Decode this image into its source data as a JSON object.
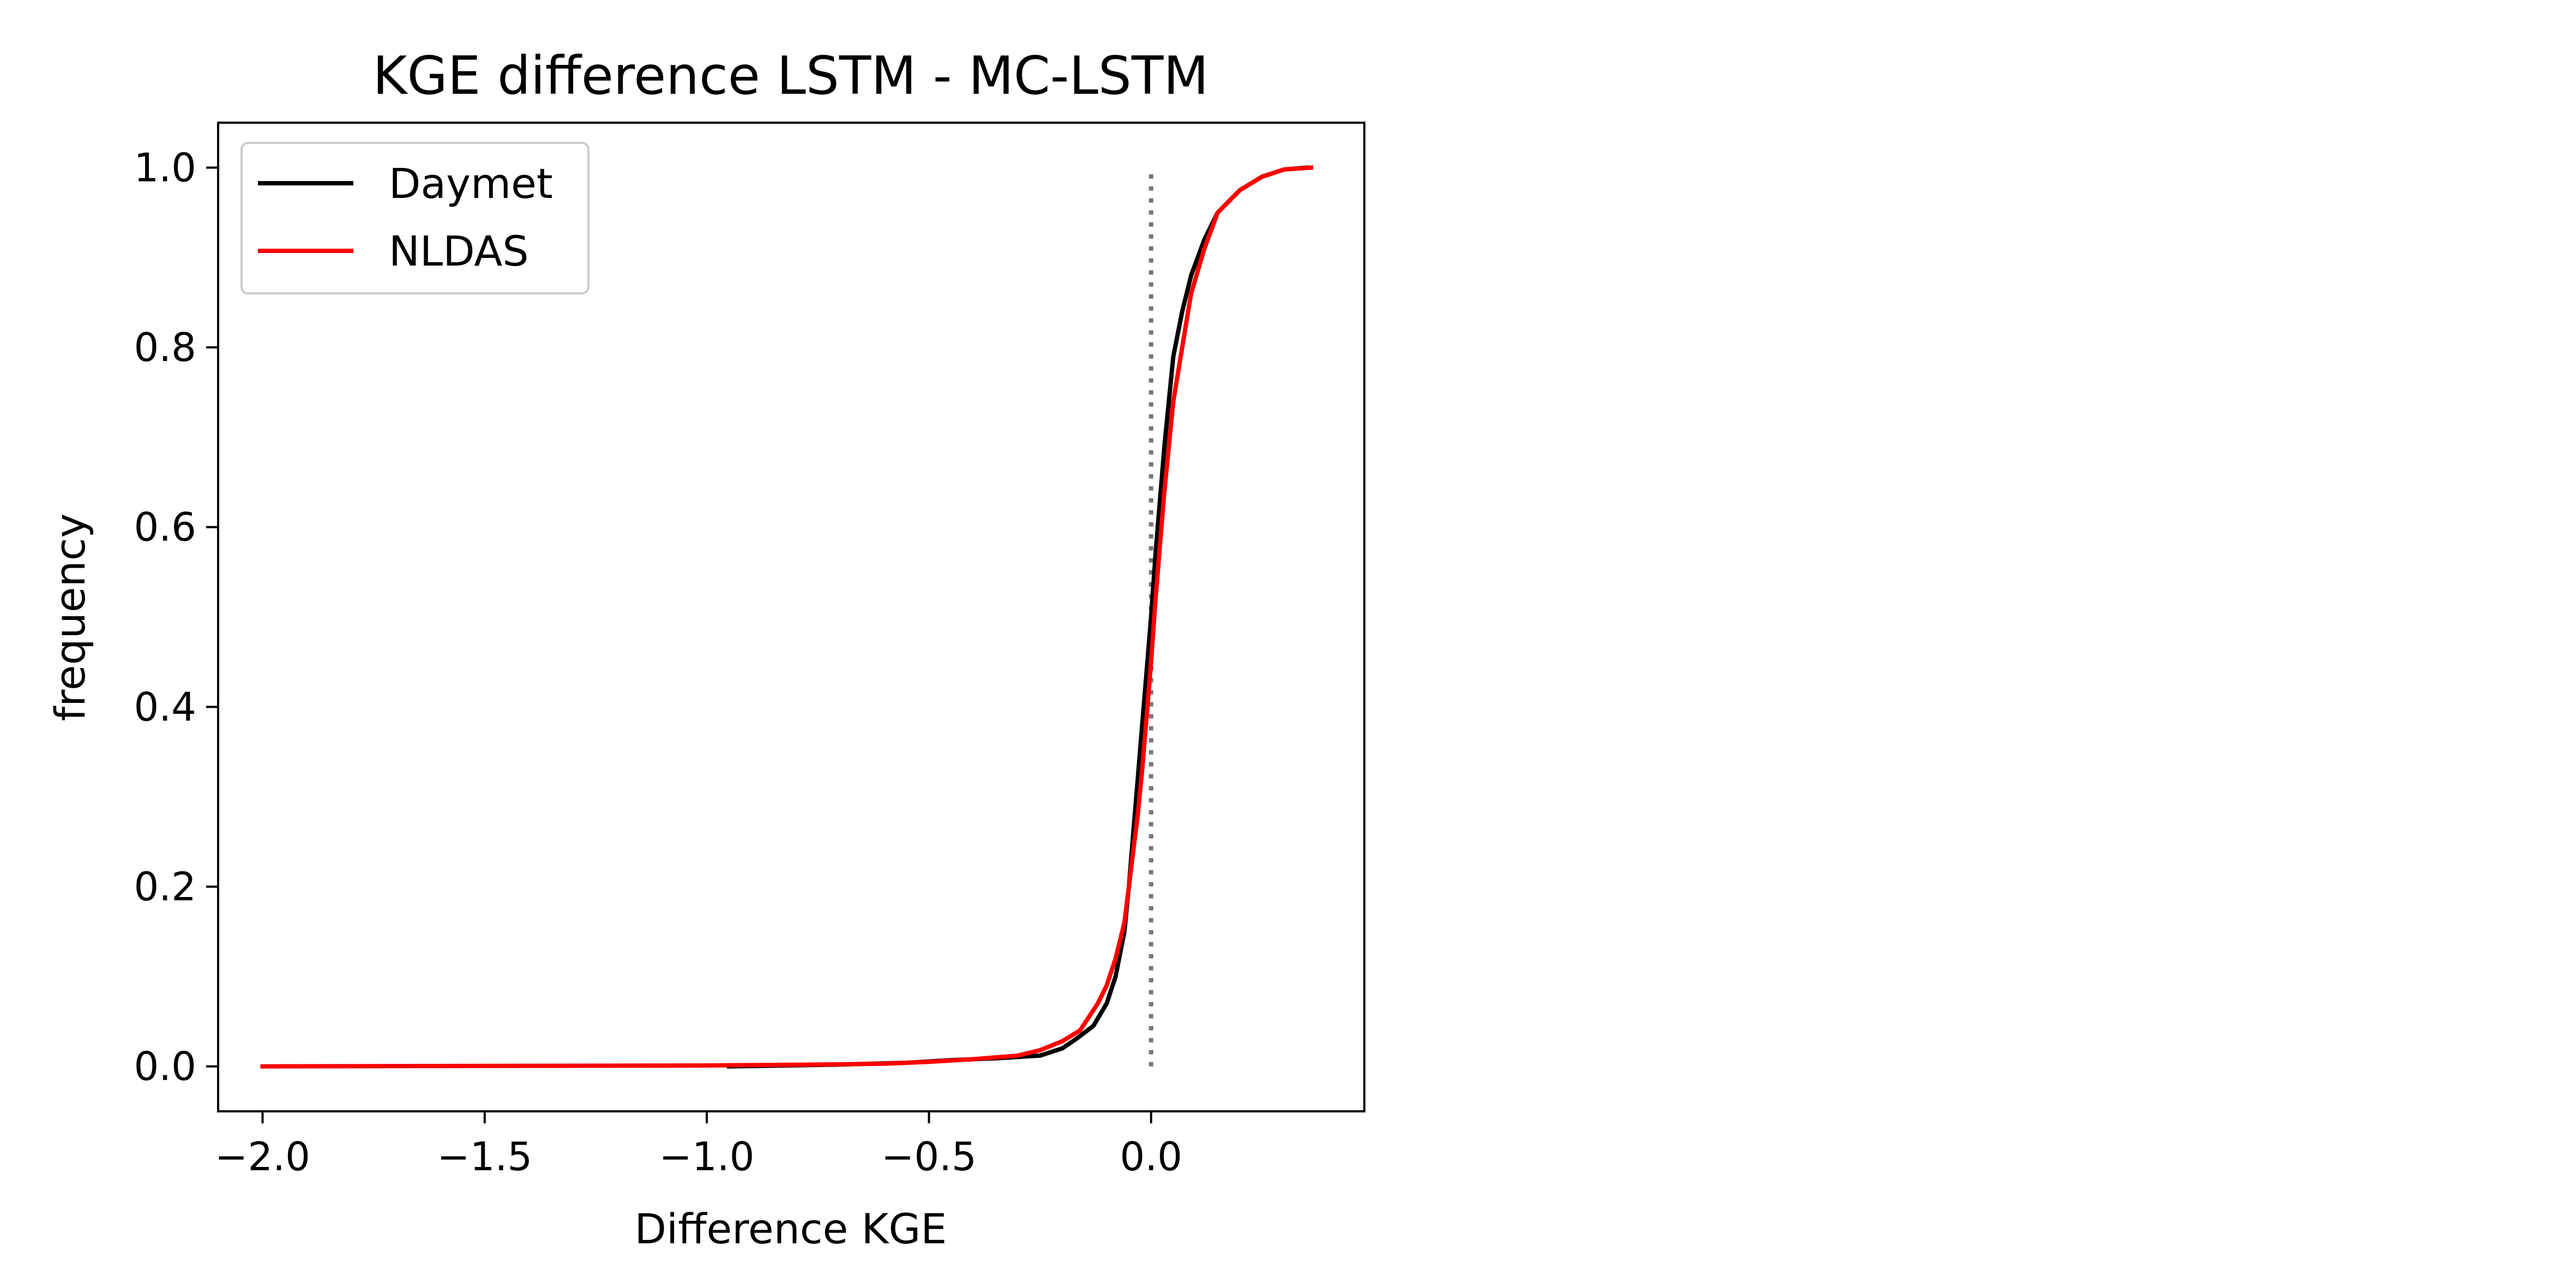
{
  "chart_data": {
    "type": "line",
    "title": "KGE difference LSTM - MC-LSTM",
    "xlabel": "Difference KGE",
    "ylabel": "frequency",
    "xlim": [
      -2.1,
      0.48
    ],
    "ylim": [
      -0.05,
      1.05
    ],
    "xticks": [
      -2.0,
      -1.5,
      -1.0,
      -0.5,
      0.0
    ],
    "xtick_labels": [
      "−2.0",
      "−1.5",
      "−1.0",
      "−0.5",
      "0.0"
    ],
    "yticks": [
      0.0,
      0.2,
      0.4,
      0.6,
      0.8,
      1.0
    ],
    "ytick_labels": [
      "0.0",
      "0.2",
      "0.4",
      "0.6",
      "0.8",
      "1.0"
    ],
    "grid": false,
    "legend": "upper-left",
    "reference_line": {
      "x": 0.0,
      "y_range": [
        0.0,
        1.0
      ],
      "color": "#777777",
      "style": "dotted"
    },
    "series": [
      {
        "name": "Daymet",
        "color": "#000000",
        "x": [
          -0.95,
          -0.7,
          -0.55,
          -0.45,
          -0.35,
          -0.25,
          -0.2,
          -0.17,
          -0.13,
          -0.1,
          -0.08,
          -0.06,
          -0.05,
          -0.04,
          -0.03,
          -0.02,
          -0.01,
          0.0,
          0.01,
          0.02,
          0.03,
          0.04,
          0.05,
          0.07,
          0.09,
          0.12,
          0.15,
          0.2,
          0.25,
          0.3,
          0.35
        ],
        "y": [
          0.0,
          0.002,
          0.004,
          0.007,
          0.009,
          0.012,
          0.02,
          0.03,
          0.045,
          0.07,
          0.1,
          0.15,
          0.2,
          0.26,
          0.32,
          0.38,
          0.44,
          0.5,
          0.57,
          0.63,
          0.69,
          0.74,
          0.79,
          0.84,
          0.88,
          0.92,
          0.95,
          0.975,
          0.99,
          0.998,
          1.0
        ]
      },
      {
        "name": "NLDAS",
        "color": "#ff0000",
        "x": [
          -2.0,
          -1.5,
          -1.0,
          -0.75,
          -0.6,
          -0.5,
          -0.4,
          -0.3,
          -0.25,
          -0.2,
          -0.16,
          -0.12,
          -0.1,
          -0.08,
          -0.06,
          -0.05,
          -0.04,
          -0.03,
          -0.02,
          -0.01,
          0.0,
          0.01,
          0.02,
          0.03,
          0.04,
          0.05,
          0.07,
          0.09,
          0.12,
          0.15,
          0.2,
          0.25,
          0.3,
          0.36
        ],
        "y": [
          0.0,
          0.0005,
          0.001,
          0.002,
          0.003,
          0.005,
          0.008,
          0.012,
          0.018,
          0.028,
          0.04,
          0.07,
          0.09,
          0.12,
          0.16,
          0.2,
          0.24,
          0.28,
          0.33,
          0.39,
          0.45,
          0.52,
          0.58,
          0.64,
          0.69,
          0.74,
          0.8,
          0.86,
          0.91,
          0.95,
          0.975,
          0.99,
          0.998,
          1.0
        ]
      }
    ]
  }
}
